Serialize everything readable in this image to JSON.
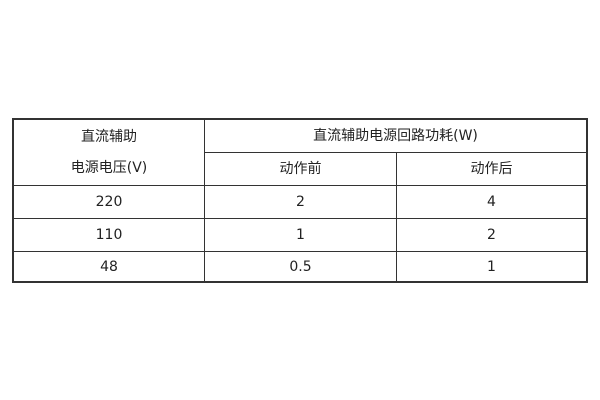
{
  "table": {
    "header": {
      "voltage_line1": "直流辅助",
      "voltage_line2": "电源电压(V)",
      "power_group": "直流辅助电源回路功耗(W)",
      "before": "动作前",
      "after": "动作后"
    },
    "rows": [
      {
        "voltage": "220",
        "before": "2",
        "after": "4"
      },
      {
        "voltage": "110",
        "before": "1",
        "after": "2"
      },
      {
        "voltage": "48",
        "before": "0.5",
        "after": "1"
      }
    ]
  }
}
